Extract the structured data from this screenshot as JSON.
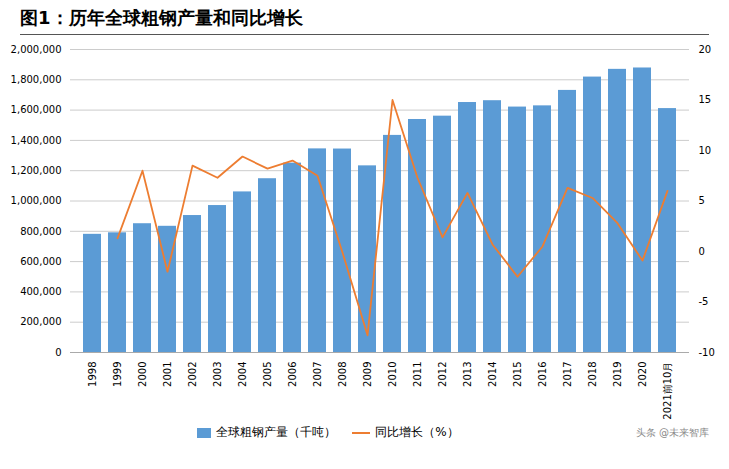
{
  "chart_data": {
    "type": "bar",
    "title": "图1：历年全球粗钢产量和同比增长",
    "categories": [
      "1998",
      "1999",
      "2000",
      "2001",
      "2002",
      "2003",
      "2004",
      "2005",
      "2006",
      "2007",
      "2008",
      "2009",
      "2010",
      "2011",
      "2012",
      "2013",
      "2014",
      "2015",
      "2016",
      "2017",
      "2018",
      "2019",
      "2020",
      "2021前10月"
    ],
    "series": [
      {
        "name": "全球粗钢产量（千吨）",
        "type": "bar",
        "color": "#5B9BD5",
        "values": [
          780000,
          790000,
          850000,
          833000,
          904000,
          970000,
          1060000,
          1147000,
          1250000,
          1344000,
          1343000,
          1232000,
          1433000,
          1538000,
          1560000,
          1650000,
          1662000,
          1620000,
          1628000,
          1730000,
          1818000,
          1869000,
          1878000,
          1610000
        ]
      },
      {
        "name": "同比增长（%）",
        "type": "line",
        "color": "#ED7D31",
        "axis": "y2",
        "values": [
          null,
          1.3,
          8.0,
          -2.0,
          8.5,
          7.3,
          9.4,
          8.2,
          9.0,
          7.5,
          -0.1,
          -8.3,
          15.0,
          7.3,
          1.4,
          5.8,
          0.7,
          -2.5,
          0.5,
          6.3,
          5.3,
          2.8,
          -0.9,
          6.0
        ]
      }
    ],
    "ylim": [
      0,
      2000000
    ],
    "yticks": [
      0,
      {
        "value": 200000,
        "label": "200,000"
      },
      {
        "value": 400000,
        "label": "400,000"
      },
      {
        "value": 600000,
        "label": "600,000"
      },
      {
        "value": 800000,
        "label": "800,000"
      },
      {
        "value": 1000000,
        "label": "1,000,000"
      },
      {
        "value": 1200000,
        "label": "1,200,000"
      },
      {
        "value": 1400000,
        "label": "1,400,000"
      },
      {
        "value": 1600000,
        "label": "1,600,000"
      },
      {
        "value": 1800000,
        "label": "1,800,000"
      },
      {
        "value": 2000000,
        "label": "2,000,000"
      }
    ],
    "y2lim": [
      -10,
      20
    ],
    "y2ticks": [
      -10,
      -5,
      0,
      5,
      10,
      15,
      20
    ],
    "grid": true,
    "legend": "bottom",
    "annotations": [
      "头条 @未来智库"
    ]
  }
}
